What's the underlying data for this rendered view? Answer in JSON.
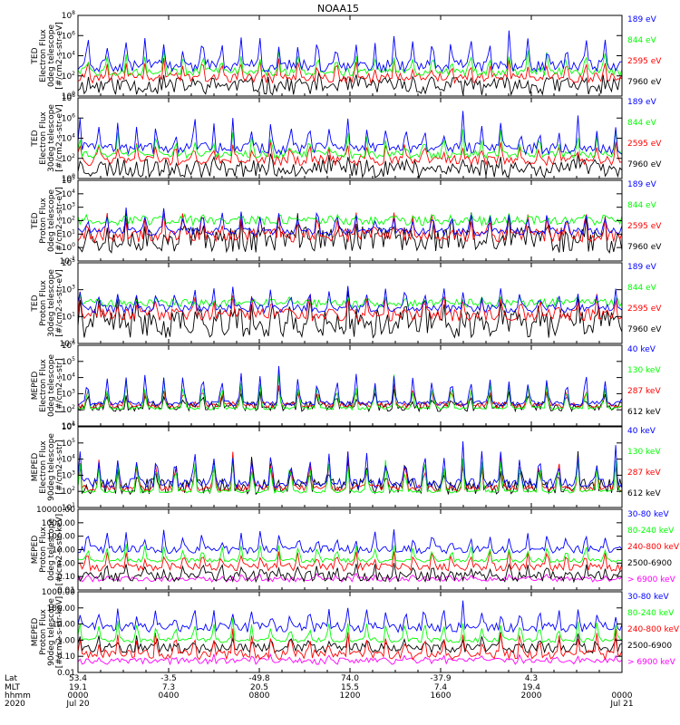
{
  "chart_data": {
    "type": "line",
    "title": "NOAA15",
    "x_range_hours": [
      0,
      24
    ],
    "time_ticks": [
      {
        "t": 0,
        "lat": "53.4",
        "mlt": "19.1",
        "hhmm": "0000",
        "date": "Jul 20"
      },
      {
        "t": 4,
        "lat": "-3.5",
        "mlt": "7.3",
        "hhmm": "0400",
        "date": ""
      },
      {
        "t": 8,
        "lat": "-49.8",
        "mlt": "20.5",
        "hhmm": "0800",
        "date": ""
      },
      {
        "t": 12,
        "lat": "74.0",
        "mlt": "15.5",
        "hhmm": "1200",
        "date": ""
      },
      {
        "t": 16,
        "lat": "-37.9",
        "mlt": "7.4",
        "hhmm": "1600",
        "date": ""
      },
      {
        "t": 20,
        "lat": "4.3",
        "mlt": "19.4",
        "hhmm": "2000",
        "date": ""
      },
      {
        "t": 24,
        "lat": "",
        "mlt": "",
        "hhmm": "0000",
        "date": "Jul 21"
      }
    ],
    "row_labels": [
      "Lat",
      "MLT",
      "hhmm",
      "2020"
    ],
    "panels": [
      {
        "ylabel": [
          "TED",
          "Electron Flux",
          "0deg telescope",
          "[#/cm2-s-str-eV]"
        ],
        "scale": "log",
        "ylim_exp": [
          0,
          8
        ],
        "tick_labels": [
          {
            "e": 0,
            "t": "10",
            "s": "0"
          },
          {
            "e": 2,
            "t": "10",
            "s": "2"
          },
          {
            "e": 4,
            "t": "10",
            "s": "4"
          },
          {
            "e": 6,
            "t": "10",
            "s": "6"
          },
          {
            "e": 8,
            "t": "10",
            "s": "8"
          }
        ],
        "seed": 11,
        "peak_exp": 6.5,
        "series": [
          {
            "name": "7960 eV",
            "color": "#000000",
            "base_exp": 1.0,
            "noise": 0.9,
            "peak_frac": 0.15
          },
          {
            "name": "2595 eV",
            "color": "#ff0000",
            "base_exp": 1.8,
            "noise": 0.5,
            "peak_frac": 0.45
          },
          {
            "name": "844 eV",
            "color": "#00ff00",
            "base_exp": 2.4,
            "noise": 0.4,
            "peak_frac": 0.6
          },
          {
            "name": "189 eV",
            "color": "#0000ff",
            "base_exp": 3.0,
            "noise": 0.6,
            "peak_frac": 1.0
          }
        ]
      },
      {
        "ylabel": [
          "TED",
          "Electron Flux",
          "30deg telescope",
          "[#/cm2-s-str-eV]"
        ],
        "scale": "log",
        "ylim_exp": [
          0,
          8
        ],
        "tick_labels": [
          {
            "e": 0,
            "t": "10",
            "s": "0"
          },
          {
            "e": 2,
            "t": "10",
            "s": "2"
          },
          {
            "e": 4,
            "t": "10",
            "s": "4"
          },
          {
            "e": 6,
            "t": "10",
            "s": "6"
          },
          {
            "e": 8,
            "t": "10",
            "s": "8"
          }
        ],
        "seed": 23,
        "peak_exp": 6.3,
        "series": [
          {
            "name": "7960 eV",
            "color": "#000000",
            "base_exp": 1.0,
            "noise": 0.9,
            "peak_frac": 0.15
          },
          {
            "name": "2595 eV",
            "color": "#ff0000",
            "base_exp": 1.8,
            "noise": 0.5,
            "peak_frac": 0.45
          },
          {
            "name": "844 eV",
            "color": "#00ff00",
            "base_exp": 2.4,
            "noise": 0.4,
            "peak_frac": 0.6
          },
          {
            "name": "189 eV",
            "color": "#0000ff",
            "base_exp": 3.0,
            "noise": 0.6,
            "peak_frac": 1.0
          }
        ]
      },
      {
        "ylabel": [
          "TED",
          "Proton Flux",
          "0deg telescope",
          "[#/cm2-s-str-eV]"
        ],
        "scale": "log",
        "ylim_exp": [
          -1,
          5
        ],
        "tick_labels": [
          {
            "e": -1,
            "t": "10",
            "s": "-1"
          },
          {
            "e": 0,
            "t": "10",
            "s": "0"
          },
          {
            "e": 1,
            "t": "10",
            "s": "1"
          },
          {
            "e": 2,
            "t": "10",
            "s": "2"
          },
          {
            "e": 3,
            "t": "10",
            "s": "3"
          },
          {
            "e": 4,
            "t": "10",
            "s": "4"
          },
          {
            "e": 5,
            "t": "10",
            "s": "5"
          }
        ],
        "seed": 37,
        "peak_exp": 3.6,
        "series": [
          {
            "name": "7960 eV",
            "color": "#000000",
            "base_exp": 0.6,
            "noise": 1.0,
            "peak_frac": 0.5
          },
          {
            "name": "2595 eV",
            "color": "#ff0000",
            "base_exp": 0.9,
            "noise": 0.5,
            "peak_frac": 0.7
          },
          {
            "name": "844 eV",
            "color": "#00ff00",
            "base_exp": 2.0,
            "noise": 0.35,
            "peak_frac": 0.3
          },
          {
            "name": "189 eV",
            "color": "#0000ff",
            "base_exp": 1.2,
            "noise": 0.3,
            "peak_frac": 0.8
          }
        ]
      },
      {
        "ylabel": [
          "TED",
          "Proton Flux",
          "30deg telescope",
          "[#/cm2-s-str-eV]"
        ],
        "scale": "log",
        "ylim_exp": [
          -1,
          5
        ],
        "tick_labels": [
          {
            "e": -1,
            "t": "10",
            "s": "-1"
          },
          {
            "e": 1,
            "t": "10",
            "s": "1"
          },
          {
            "e": 3,
            "t": "10",
            "s": "3"
          },
          {
            "e": 5,
            "t": "10",
            "s": "5"
          }
        ],
        "seed": 41,
        "peak_exp": 3.4,
        "series": [
          {
            "name": "7960 eV",
            "color": "#000000",
            "base_exp": 0.5,
            "noise": 1.1,
            "peak_frac": 0.5
          },
          {
            "name": "2595 eV",
            "color": "#ff0000",
            "base_exp": 1.1,
            "noise": 0.45,
            "peak_frac": 0.7
          },
          {
            "name": "844 eV",
            "color": "#00ff00",
            "base_exp": 2.0,
            "noise": 0.3,
            "peak_frac": 0.3
          },
          {
            "name": "189 eV",
            "color": "#0000ff",
            "base_exp": 1.6,
            "noise": 0.3,
            "peak_frac": 1.0
          }
        ]
      },
      {
        "ylabel": [
          "MEPED",
          "Electron Flux",
          "0deg telescope",
          "[#/cm2-s-str]"
        ],
        "scale": "log",
        "ylim_exp": [
          1,
          6
        ],
        "tick_labels": [
          {
            "e": 1,
            "t": "10",
            "s": "1"
          },
          {
            "e": 2,
            "t": "10",
            "s": "2"
          },
          {
            "e": 3,
            "t": "10",
            "s": "3"
          },
          {
            "e": 4,
            "t": "10",
            "s": "4"
          },
          {
            "e": 5,
            "t": "10",
            "s": "5"
          },
          {
            "e": 6,
            "t": "10",
            "s": "6"
          }
        ],
        "seed": 53,
        "peak_exp": 4.8,
        "series": [
          {
            "name": "612 keV",
            "color": "#000000",
            "base_exp": 2.2,
            "noise": 0.3,
            "peak_frac": 0.4
          },
          {
            "name": "287 keV",
            "color": "#ff0000",
            "base_exp": 2.3,
            "noise": 0.2,
            "peak_frac": 0.6
          },
          {
            "name": "130 keV",
            "color": "#00ff00",
            "base_exp": 2.1,
            "noise": 0.1,
            "peak_frac": 0.8
          },
          {
            "name": "40 keV",
            "color": "#0000ff",
            "base_exp": 2.4,
            "noise": 0.15,
            "peak_frac": 1.0
          }
        ]
      },
      {
        "ylabel": [
          "MEPED",
          "Electron Flux",
          "90deg telescope",
          "[#/cm2-s-str]"
        ],
        "scale": "log",
        "ylim_exp": [
          1,
          6
        ],
        "tick_labels": [
          {
            "e": 1,
            "t": "10",
            "s": "1"
          },
          {
            "e": 2,
            "t": "10",
            "s": "2"
          },
          {
            "e": 3,
            "t": "10",
            "s": "3"
          },
          {
            "e": 4,
            "t": "10",
            "s": "4"
          },
          {
            "e": 5,
            "t": "10",
            "s": "5"
          },
          {
            "e": 6,
            "t": "10",
            "s": "6"
          }
        ],
        "seed": 67,
        "peak_exp": 5.0,
        "series": [
          {
            "name": "612 keV",
            "color": "#000000",
            "base_exp": 2.3,
            "noise": 0.5,
            "peak_frac": 0.7
          },
          {
            "name": "287 keV",
            "color": "#ff0000",
            "base_exp": 2.2,
            "noise": 0.2,
            "peak_frac": 0.8
          },
          {
            "name": "130 keV",
            "color": "#00ff00",
            "base_exp": 2.0,
            "noise": 0.1,
            "peak_frac": 0.9
          },
          {
            "name": "40 keV",
            "color": "#0000ff",
            "base_exp": 2.5,
            "noise": 0.3,
            "peak_frac": 1.0
          }
        ]
      },
      {
        "ylabel": [
          "MEPED",
          "Proton Flux",
          "0deg telescope",
          "[#/cm2-s-str-keV]"
        ],
        "scale": "log",
        "ylim_exp": [
          -2,
          4
        ],
        "tick_labels": [
          {
            "e": -2,
            "t": "0.01"
          },
          {
            "e": -1,
            "t": "0.10"
          },
          {
            "e": 0,
            "t": "1.00"
          },
          {
            "e": 1,
            "t": "10.00"
          },
          {
            "e": 2,
            "t": "100.00"
          },
          {
            "e": 3,
            "t": "1000.00"
          },
          {
            "e": 4,
            "t": "10000.00"
          }
        ],
        "seed": 79,
        "peak_exp": 2.6,
        "series": [
          {
            "name": "> 6900 keV",
            "color": "#ff00ff",
            "base_exp": -1.2,
            "noise": 0.2,
            "peak_frac": 0.1
          },
          {
            "name": "2500-6900",
            "color": "#000000",
            "base_exp": -1.0,
            "noise": 0.4,
            "peak_frac": 0.3
          },
          {
            "name": "240-800 keV",
            "color": "#ff0000",
            "base_exp": -0.3,
            "noise": 0.3,
            "peak_frac": 0.5
          },
          {
            "name": "80-240 keV",
            "color": "#00ff00",
            "base_exp": 0.2,
            "noise": 0.15,
            "peak_frac": 0.6
          },
          {
            "name": "30-80 keV",
            "color": "#0000ff",
            "base_exp": 1.0,
            "noise": 0.3,
            "peak_frac": 1.0
          }
        ]
      },
      {
        "ylabel": [
          "MEPED",
          "Proton Flux",
          "90deg telescope",
          "[#/cm2-s-str-keV]"
        ],
        "scale": "log",
        "ylim_exp": [
          -2,
          3
        ],
        "tick_labels": [
          {
            "e": -2,
            "t": "0.01"
          },
          {
            "e": -1,
            "t": "0.10"
          },
          {
            "e": 0,
            "t": "1.00"
          },
          {
            "e": 1,
            "t": "10.00"
          },
          {
            "e": 2,
            "t": "100.00"
          },
          {
            "e": 3,
            "t": "1000.00"
          }
        ],
        "seed": 97,
        "peak_exp": 2.3,
        "series": [
          {
            "name": "> 6900 keV",
            "color": "#ff00ff",
            "base_exp": -1.3,
            "noise": 0.2,
            "peak_frac": 0.1
          },
          {
            "name": "2500-6900",
            "color": "#000000",
            "base_exp": -0.5,
            "noise": 0.3,
            "peak_frac": 0.3
          },
          {
            "name": "240-800 keV",
            "color": "#ff0000",
            "base_exp": -0.9,
            "noise": 0.3,
            "peak_frac": 0.5
          },
          {
            "name": "80-240 keV",
            "color": "#00ff00",
            "base_exp": 0.0,
            "noise": 0.15,
            "peak_frac": 0.6
          },
          {
            "name": "30-80 keV",
            "color": "#0000ff",
            "base_exp": 0.8,
            "noise": 0.3,
            "peak_frac": 1.0
          }
        ]
      }
    ]
  }
}
